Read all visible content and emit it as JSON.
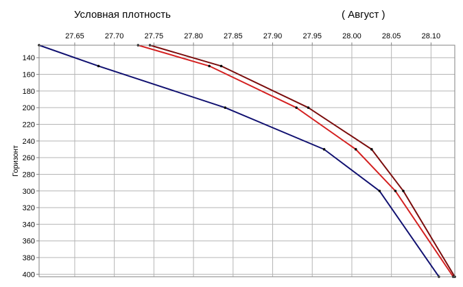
{
  "chart_data": {
    "type": "line",
    "title": "Условная плотность",
    "subtitle": "( Август )",
    "ylabel": "Горизонт",
    "x_axis_position": "top",
    "y_inverted": true,
    "grid": true,
    "xlim": [
      27.605,
      28.13
    ],
    "ylim": [
      125,
      403
    ],
    "x_ticks": [
      "27.65",
      "27.70",
      "27.75",
      "27.80",
      "27.85",
      "27.90",
      "27.95",
      "28.00",
      "28.05",
      "28.10"
    ],
    "y_ticks": [
      "140",
      "160",
      "180",
      "200",
      "220",
      "240",
      "260",
      "280",
      "300",
      "320",
      "340",
      "360",
      "380",
      "400"
    ],
    "series": [
      {
        "color": "#7a0c0c",
        "points": [
          [
            27.745,
            125
          ],
          [
            27.835,
            150
          ],
          [
            27.945,
            200
          ],
          [
            28.025,
            250
          ],
          [
            28.065,
            300
          ],
          [
            28.13,
            403
          ]
        ]
      },
      {
        "color": "#d42020",
        "points": [
          [
            27.73,
            125
          ],
          [
            27.82,
            150
          ],
          [
            27.93,
            200
          ],
          [
            28.005,
            250
          ],
          [
            28.055,
            300
          ],
          [
            28.128,
            403
          ]
        ]
      },
      {
        "color": "#101070",
        "points": [
          [
            27.605,
            125
          ],
          [
            27.68,
            150
          ],
          [
            27.84,
            200
          ],
          [
            27.965,
            250
          ],
          [
            28.035,
            300
          ],
          [
            28.11,
            403
          ]
        ]
      }
    ]
  }
}
